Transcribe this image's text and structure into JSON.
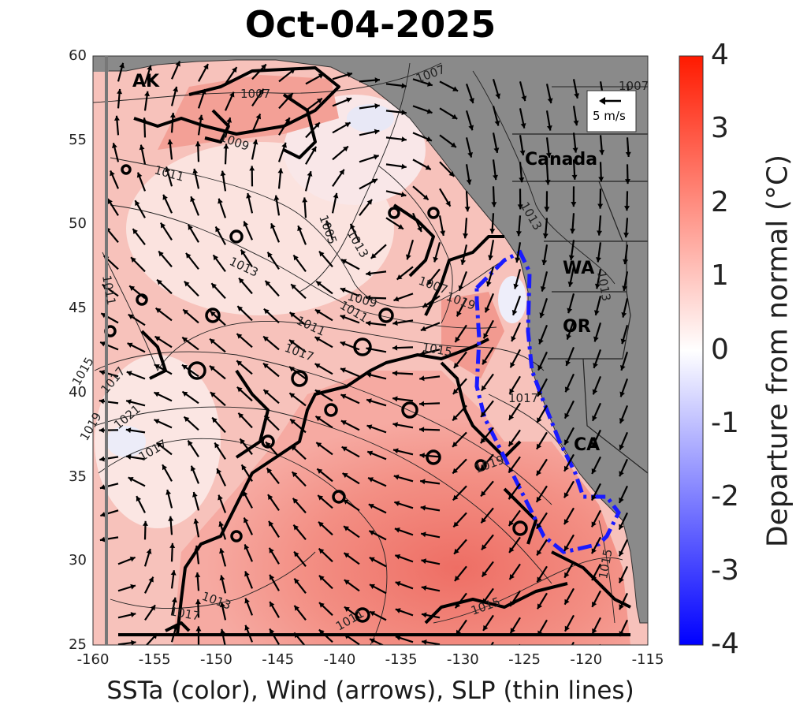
{
  "title": "Oct-04-2025",
  "x_caption": "SSTa (color), Wind (arrows), SLP (thin lines)",
  "x_ticks": [
    "-160",
    "-155",
    "-150",
    "-145",
    "-140",
    "-135",
    "-130",
    "-125",
    "-120",
    "-115"
  ],
  "y_ticks": [
    "60",
    "55",
    "50",
    "45",
    "40",
    "35",
    "30",
    "25"
  ],
  "colorbar": {
    "label": "Departure from normal (°C)",
    "ticks": [
      "4",
      "3",
      "2",
      "1",
      "0",
      "-1",
      "-2",
      "-3",
      "-4"
    ],
    "min": -4,
    "max": 4,
    "colors": [
      "#0000ff",
      "#ffffff",
      "#ff1a00"
    ]
  },
  "region_labels": [
    "AK",
    "Canada",
    "WA",
    "OR",
    "CA"
  ],
  "wind_legend_label": "5 m/s",
  "slp_contour_labels": [
    "1007",
    "1007",
    "1007",
    "1009",
    "1011",
    "1011",
    "1013",
    "1013",
    "1013",
    "1005",
    "1007",
    "1011",
    "1009",
    "1015",
    "1017",
    "1017",
    "1015",
    "1017",
    "1019",
    "1019",
    "1021",
    "1017",
    "1013",
    "1011",
    "1015",
    "1011",
    "1013",
    "1019",
    "1017",
    "1015"
  ],
  "colors": {
    "land": "#8a8a8a",
    "ocean_warm": "#f1877c",
    "ocean_neutral": "#fbe8e6",
    "anomaly_contour": "#000000",
    "marine_heatwave_outline": "#1a1aff"
  }
}
